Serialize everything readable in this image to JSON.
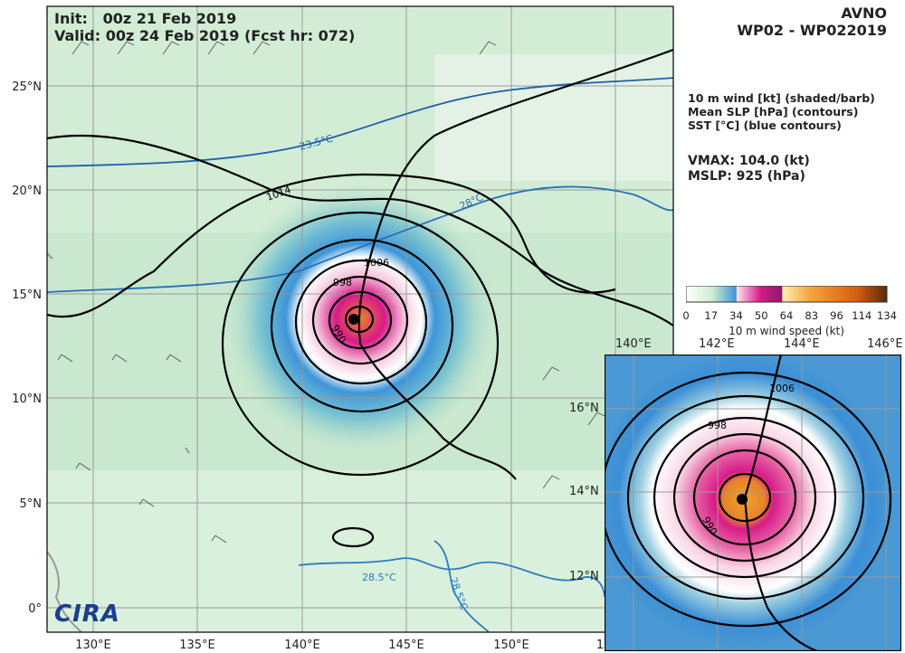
{
  "header": {
    "init": "Init:   00z 21 Feb 2019",
    "valid": "Valid: 00z 24 Feb 2019 (Fcst hr: 072)",
    "model": "AVNO",
    "storm": "WP02 - WP022019"
  },
  "legend": {
    "line1": "10 m wind [kt] (shaded/barb)",
    "line2": "Mean SLP [hPa] (contours)",
    "line3": "SST [°C] (blue contours)",
    "vmax": "VMAX: 104.0 (kt)",
    "mslp": "MSLP:  925 (hPa)"
  },
  "colorbar": {
    "label": "10 m wind speed (kt)",
    "ticks": [
      "0",
      "17",
      "34",
      "50",
      "64",
      "83",
      "96",
      "114",
      "134"
    ],
    "tick_values": [
      0,
      17,
      34,
      50,
      64,
      83,
      96,
      114,
      134
    ],
    "colors": [
      "#ffffff",
      "#d9f0d9",
      "#6fc0c8",
      "#3b8fd6",
      "#f3d7e6",
      "#d81b8a",
      "#fde08a",
      "#f6a43a",
      "#e36b0d",
      "#8a3b0a"
    ]
  },
  "main_map": {
    "lat_ticks": [
      "25°N",
      "20°N",
      "15°N",
      "10°N",
      "5°N",
      "0°"
    ],
    "lon_ticks": [
      "130°E",
      "135°E",
      "140°E",
      "145°E",
      "150°E",
      "1"
    ],
    "isobar_labels": [
      "1014",
      "1006",
      "998",
      "990"
    ],
    "sst_labels": [
      "23.5°C",
      "28°C",
      "28.5°C",
      "28.5°C"
    ]
  },
  "inset_map": {
    "lon_ticks": [
      "140°E",
      "142°E",
      "144°E",
      "146°E"
    ],
    "lat_ticks": [
      "16°N",
      "14°N",
      "12°N"
    ],
    "isobar_labels": [
      "1006",
      "998",
      "990"
    ]
  },
  "branding": {
    "logo": "CIRA"
  }
}
